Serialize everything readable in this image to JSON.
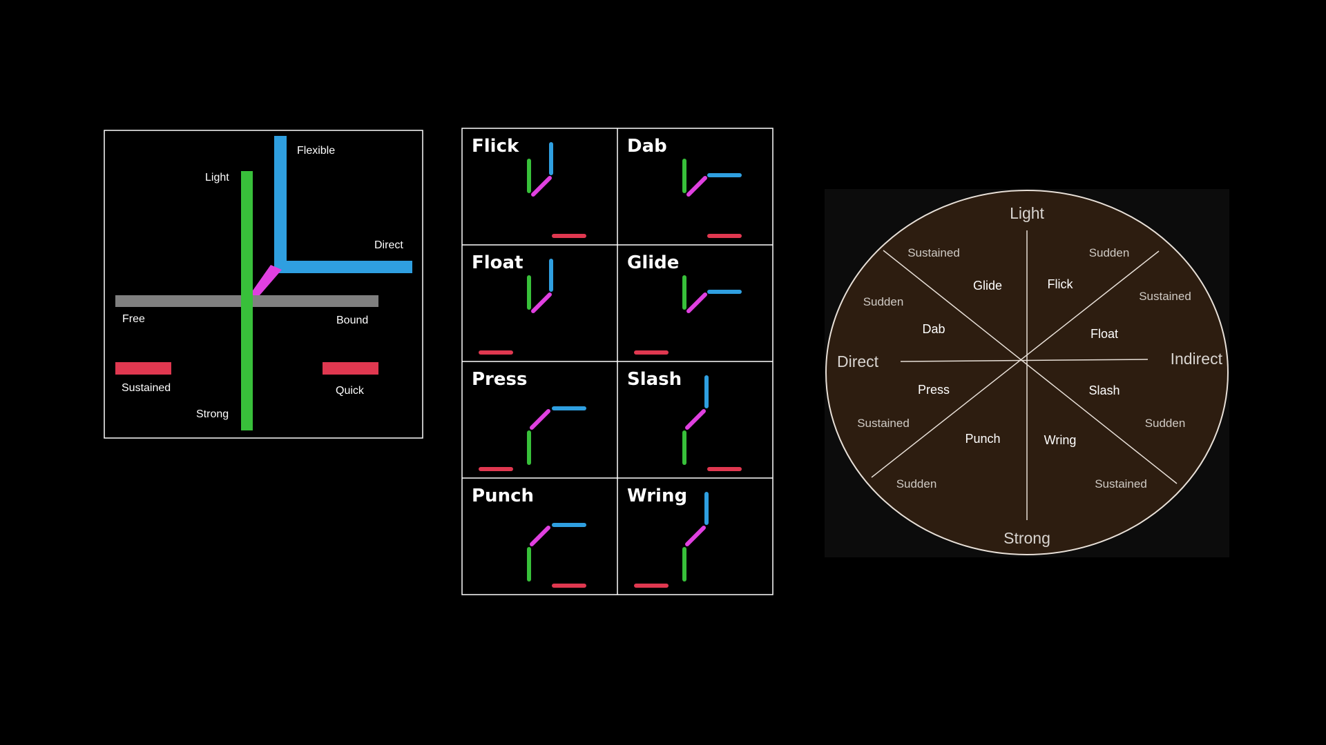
{
  "colors": {
    "background": "#000000",
    "weight": "#38c03a",
    "space": "#2f9fe0",
    "time": "#e03850",
    "flow": "#808080",
    "combo": "#e040e0",
    "wheel_fill": "#2d1d10",
    "wheel_line": "#e8e0d8",
    "frame": "#ffffff"
  },
  "axes_diagram": {
    "labels": {
      "light": "Light",
      "strong": "Strong",
      "flexible": "Flexible",
      "direct": "Direct",
      "free": "Free",
      "bound": "Bound",
      "sustained": "Sustained",
      "quick": "Quick"
    }
  },
  "efforts_grid": {
    "cells": [
      {
        "title": "Flick"
      },
      {
        "title": "Dab"
      },
      {
        "title": "Float"
      },
      {
        "title": "Glide"
      },
      {
        "title": "Press"
      },
      {
        "title": "Slash"
      },
      {
        "title": "Punch"
      },
      {
        "title": "Wring"
      }
    ]
  },
  "effort_wheel": {
    "poles": {
      "top": "Light",
      "bottom": "Strong",
      "left": "Direct",
      "right": "Indirect"
    },
    "efforts": {
      "glide": "Glide",
      "flick": "Flick",
      "dab": "Dab",
      "float": "Float",
      "press": "Press",
      "slash": "Slash",
      "punch": "Punch",
      "wring": "Wring"
    },
    "time_labels": {
      "top_left": "Sustained",
      "top_right": "Sudden",
      "upper_left": "Sudden",
      "upper_right": "Sustained",
      "lower_left": "Sustained",
      "lower_right": "Sudden",
      "bottom_left": "Sudden",
      "bottom_right": "Sustained"
    }
  }
}
